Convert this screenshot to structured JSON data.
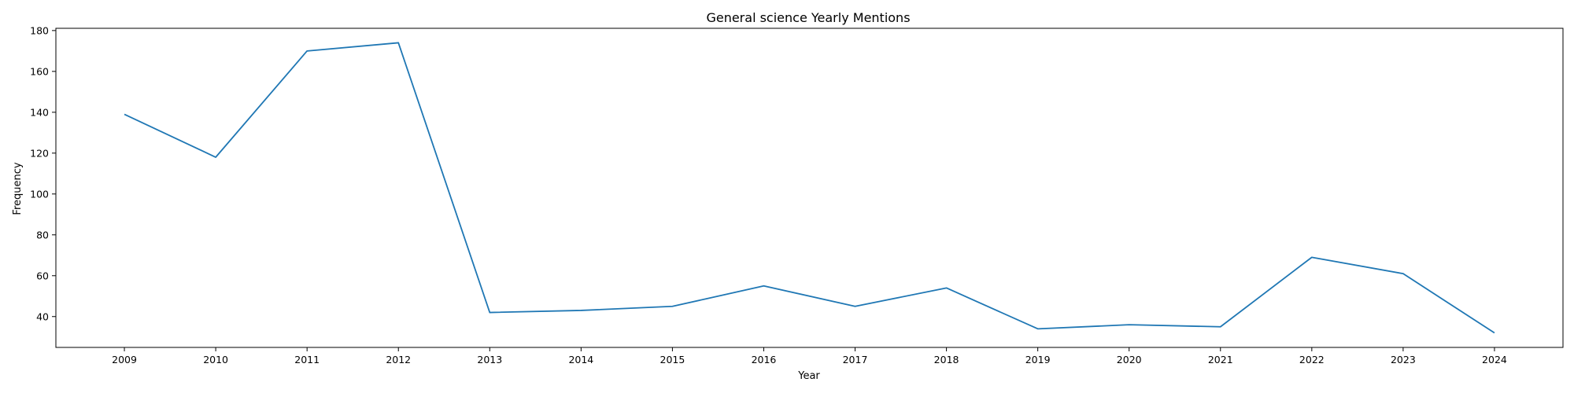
{
  "chart_data": {
    "type": "line",
    "title": "General science Yearly Mentions",
    "xlabel": "Year",
    "ylabel": "Frequency",
    "x": [
      "2009",
      "2010",
      "2011",
      "2012",
      "2013",
      "2014",
      "2015",
      "2016",
      "2017",
      "2018",
      "2019",
      "2020",
      "2021",
      "2022",
      "2023",
      "2024"
    ],
    "series": [
      {
        "values": [
          139,
          118,
          170,
          174,
          42,
          43,
          45,
          55,
          45,
          54,
          34,
          36,
          35,
          69,
          61,
          32
        ]
      }
    ],
    "xlim": [
      2008.25,
      2024.75
    ],
    "ylim": [
      24.9,
      181.1
    ],
    "yticks": [
      40,
      60,
      80,
      100,
      120,
      140,
      160,
      180
    ],
    "grid": false,
    "legend": "none",
    "line_color": "#1f77b4"
  }
}
